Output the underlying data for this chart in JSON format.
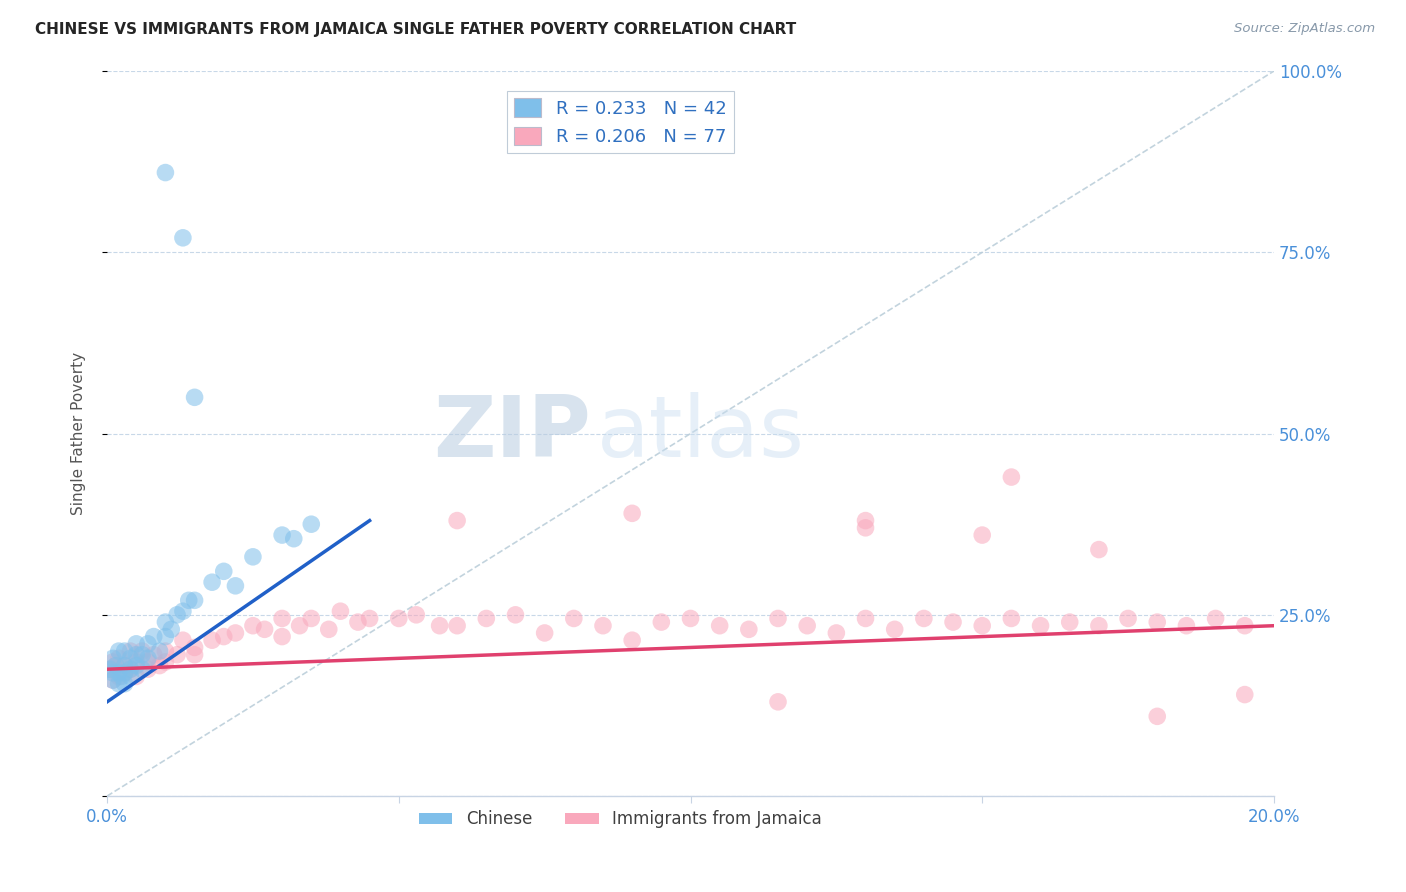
{
  "title": "CHINESE VS IMMIGRANTS FROM JAMAICA SINGLE FATHER POVERTY CORRELATION CHART",
  "source": "Source: ZipAtlas.com",
  "ylabel": "Single Father Poverty",
  "legend_label1": "Chinese",
  "legend_label2": "Immigrants from Jamaica",
  "R1": 0.233,
  "N1": 42,
  "R2": 0.206,
  "N2": 77,
  "xlim": [
    0.0,
    0.2
  ],
  "ylim": [
    0.0,
    1.0
  ],
  "color_chinese": "#7fbfea",
  "color_jamaica": "#f9a8bc",
  "color_reg_chinese": "#2060c8",
  "color_reg_jamaica": "#e0406e",
  "color_diag": "#b8ccd8",
  "watermark_zip": "ZIP",
  "watermark_atlas": "atlas",
  "chinese_x": [
    0.0005,
    0.001,
    0.001,
    0.001,
    0.0015,
    0.002,
    0.002,
    0.002,
    0.0025,
    0.003,
    0.003,
    0.003,
    0.003,
    0.004,
    0.004,
    0.004,
    0.005,
    0.005,
    0.005,
    0.006,
    0.006,
    0.007,
    0.007,
    0.008,
    0.009,
    0.01,
    0.01,
    0.011,
    0.012,
    0.013,
    0.014,
    0.015,
    0.018,
    0.02,
    0.022,
    0.025,
    0.03,
    0.032,
    0.035,
    0.01,
    0.013,
    0.015
  ],
  "chinese_y": [
    0.175,
    0.19,
    0.17,
    0.16,
    0.18,
    0.2,
    0.17,
    0.155,
    0.165,
    0.2,
    0.18,
    0.155,
    0.17,
    0.19,
    0.175,
    0.165,
    0.21,
    0.18,
    0.195,
    0.195,
    0.175,
    0.21,
    0.19,
    0.22,
    0.2,
    0.24,
    0.22,
    0.23,
    0.25,
    0.255,
    0.27,
    0.27,
    0.295,
    0.31,
    0.29,
    0.33,
    0.36,
    0.355,
    0.375,
    0.86,
    0.77,
    0.55
  ],
  "jamaica_x": [
    0.0005,
    0.001,
    0.001,
    0.0015,
    0.002,
    0.002,
    0.003,
    0.003,
    0.004,
    0.004,
    0.005,
    0.005,
    0.006,
    0.007,
    0.007,
    0.008,
    0.009,
    0.01,
    0.01,
    0.012,
    0.013,
    0.015,
    0.015,
    0.018,
    0.02,
    0.022,
    0.025,
    0.027,
    0.03,
    0.03,
    0.033,
    0.035,
    0.038,
    0.04,
    0.043,
    0.045,
    0.05,
    0.053,
    0.057,
    0.06,
    0.065,
    0.07,
    0.075,
    0.08,
    0.085,
    0.09,
    0.095,
    0.1,
    0.105,
    0.11,
    0.115,
    0.12,
    0.125,
    0.13,
    0.135,
    0.14,
    0.145,
    0.15,
    0.155,
    0.16,
    0.165,
    0.17,
    0.175,
    0.18,
    0.185,
    0.19,
    0.195,
    0.06,
    0.09,
    0.13,
    0.15,
    0.17,
    0.155,
    0.13,
    0.115,
    0.195,
    0.18
  ],
  "jamaica_y": [
    0.175,
    0.185,
    0.16,
    0.18,
    0.19,
    0.165,
    0.18,
    0.17,
    0.2,
    0.175,
    0.185,
    0.165,
    0.2,
    0.185,
    0.175,
    0.195,
    0.18,
    0.2,
    0.185,
    0.195,
    0.215,
    0.205,
    0.195,
    0.215,
    0.22,
    0.225,
    0.235,
    0.23,
    0.245,
    0.22,
    0.235,
    0.245,
    0.23,
    0.255,
    0.24,
    0.245,
    0.245,
    0.25,
    0.235,
    0.235,
    0.245,
    0.25,
    0.225,
    0.245,
    0.235,
    0.215,
    0.24,
    0.245,
    0.235,
    0.23,
    0.245,
    0.235,
    0.225,
    0.245,
    0.23,
    0.245,
    0.24,
    0.235,
    0.245,
    0.235,
    0.24,
    0.235,
    0.245,
    0.24,
    0.235,
    0.245,
    0.235,
    0.38,
    0.39,
    0.37,
    0.36,
    0.34,
    0.44,
    0.38,
    0.13,
    0.14,
    0.11
  ]
}
